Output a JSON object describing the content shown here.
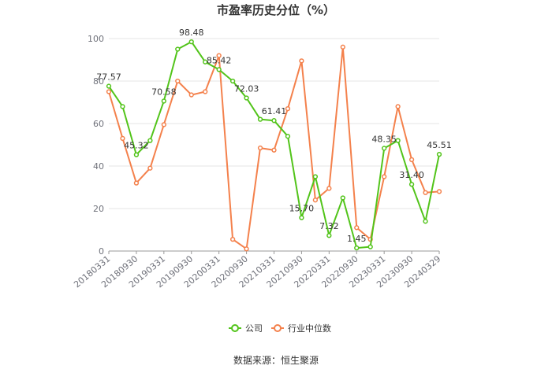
{
  "chart_data": {
    "type": "line",
    "title": "市盈率历史分位（%）",
    "xlabel": "",
    "ylabel": "",
    "ylim": [
      0,
      100
    ],
    "yticks": [
      0,
      20,
      40,
      60,
      80,
      100
    ],
    "x": [
      "20180331",
      "20180630",
      "20180930",
      "20181231",
      "20190331",
      "20190630",
      "20190930",
      "20191231",
      "20200331",
      "20200630",
      "20200930",
      "20201231",
      "20210331",
      "20210630",
      "20210930",
      "20211231",
      "20220331",
      "20220630",
      "20220930",
      "20221231",
      "20230331",
      "20230630",
      "20230930",
      "20231231",
      "20240329"
    ],
    "x_tick_labels": [
      "20180331",
      "20180930",
      "20190331",
      "20190930",
      "20200331",
      "20200930",
      "20210331",
      "20210930",
      "20220331",
      "20220930",
      "20230331",
      "20230930",
      "20240329"
    ],
    "series": [
      {
        "name": "公司",
        "color": "#52c41a",
        "values": [
          77.57,
          68.0,
          45.32,
          52.0,
          70.58,
          95.0,
          98.48,
          89.0,
          85.42,
          80.0,
          72.03,
          62.0,
          61.41,
          54.0,
          15.7,
          35.0,
          7.32,
          25.0,
          1.45,
          2.0,
          48.35,
          52.0,
          31.4,
          14.0,
          45.51
        ]
      },
      {
        "name": "行业中位数",
        "color": "#f4814c",
        "values": [
          75.0,
          53.0,
          32.0,
          39.0,
          59.5,
          80.0,
          73.5,
          75.0,
          92.0,
          5.5,
          1.0,
          48.5,
          47.5,
          67.0,
          89.5,
          24.0,
          29.5,
          96.0,
          11.0,
          5.5,
          35.0,
          68.0,
          43.0,
          27.5,
          28.0
        ]
      }
    ],
    "data_labels": [
      {
        "series": 0,
        "index": 0,
        "text": "77.57"
      },
      {
        "series": 0,
        "index": 2,
        "text": "45.32"
      },
      {
        "series": 0,
        "index": 4,
        "text": "70.58"
      },
      {
        "series": 0,
        "index": 6,
        "text": "98.48"
      },
      {
        "series": 0,
        "index": 8,
        "text": "85.42"
      },
      {
        "series": 0,
        "index": 10,
        "text": "72.03"
      },
      {
        "series": 0,
        "index": 12,
        "text": "61.41"
      },
      {
        "series": 0,
        "index": 14,
        "text": "15.70"
      },
      {
        "series": 0,
        "index": 16,
        "text": "7.32"
      },
      {
        "series": 0,
        "index": 18,
        "text": "1.45"
      },
      {
        "series": 0,
        "index": 20,
        "text": "48.35"
      },
      {
        "series": 0,
        "index": 22,
        "text": "31.40"
      },
      {
        "series": 0,
        "index": 24,
        "text": "45.51"
      }
    ],
    "legend": {
      "position": "bottom",
      "items": [
        "公司",
        "行业中位数"
      ]
    },
    "grid": true
  },
  "footer": {
    "source": "数据来源：恒生聚源"
  }
}
